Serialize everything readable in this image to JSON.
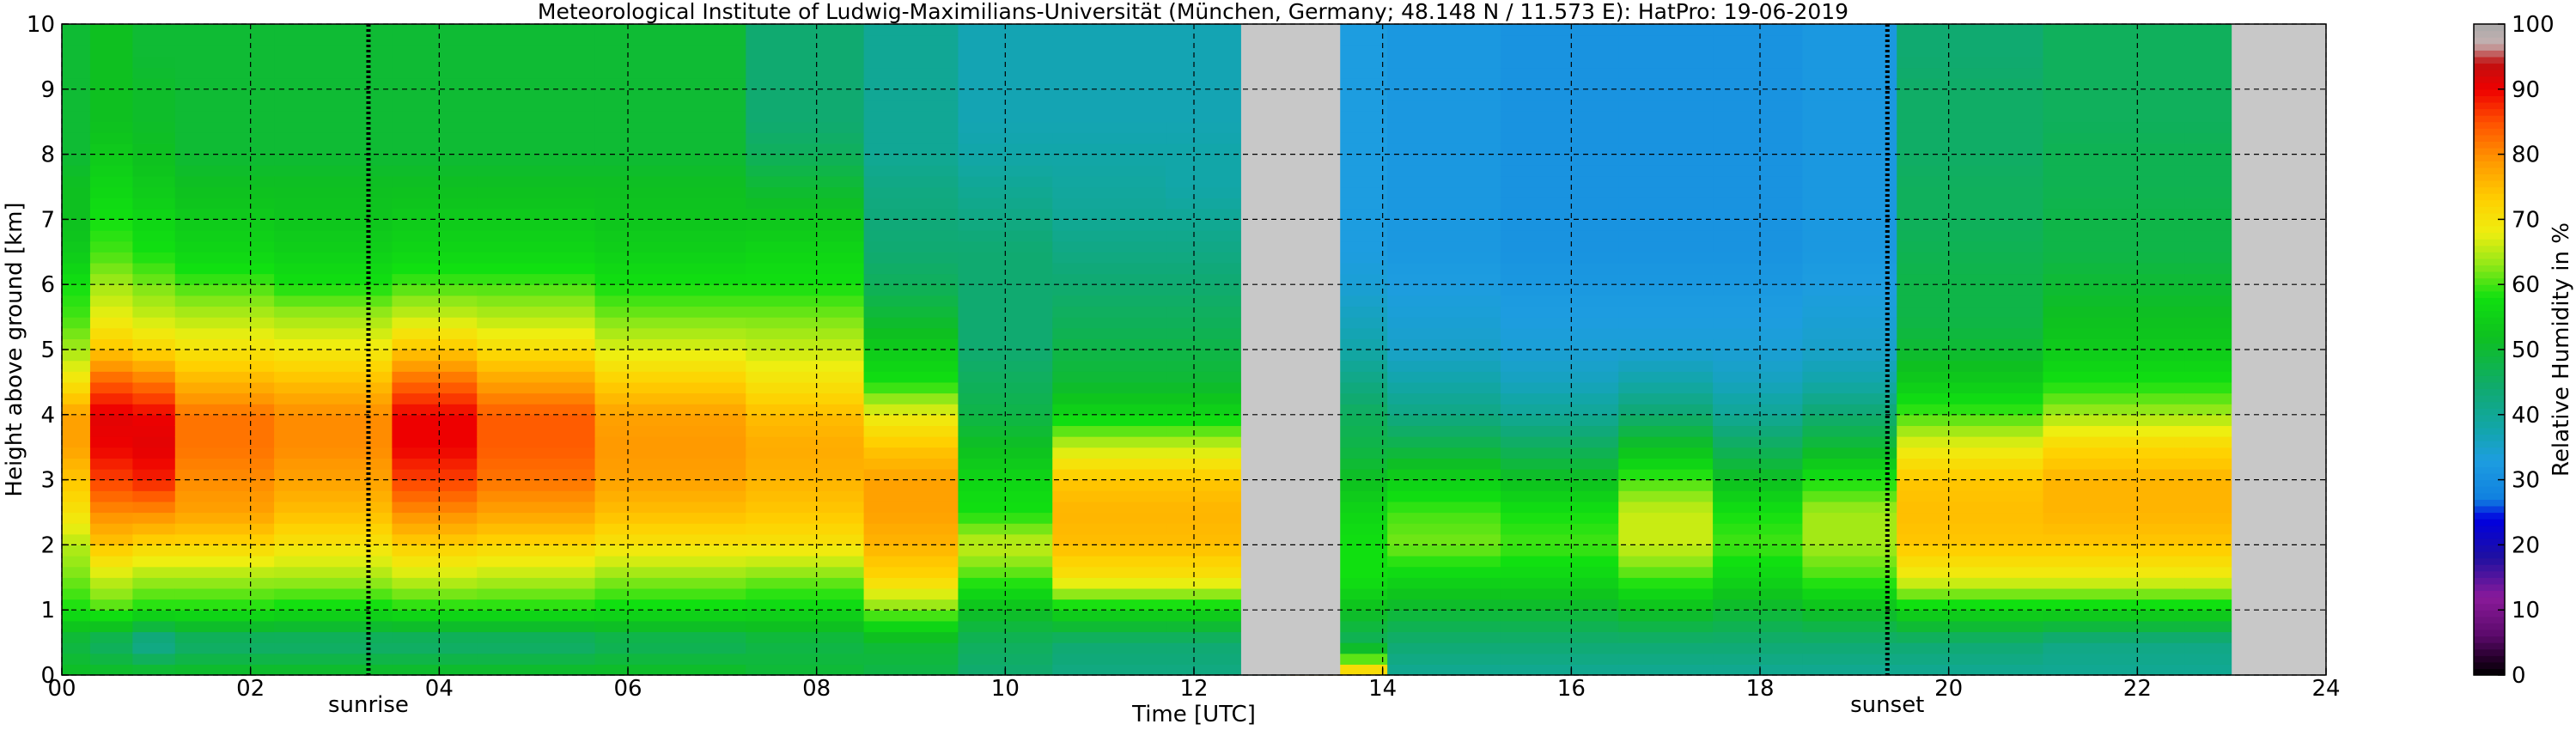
{
  "chart_data": {
    "type": "heatmap",
    "title": "Meteorological Institute of Ludwig-Maximilians-Universität (München, Germany; 48.148 N / 11.573 E):    HatPro: 19-06-2019",
    "xlabel": "Time [UTC]",
    "ylabel": "Height above ground [km]",
    "colorbar_label": "Relative Humidity in %",
    "xlim": [
      0,
      24
    ],
    "ylim": [
      0,
      10
    ],
    "clim": [
      0,
      100
    ],
    "x_ticks": [
      "00",
      "02",
      "04",
      "06",
      "08",
      "10",
      "12",
      "14",
      "16",
      "18",
      "20",
      "22",
      "24"
    ],
    "y_ticks": [
      "0",
      "1",
      "2",
      "3",
      "4",
      "5",
      "6",
      "7",
      "8",
      "9",
      "10"
    ],
    "colorbar_ticks": [
      "0",
      "10",
      "20",
      "30",
      "40",
      "50",
      "60",
      "70",
      "80",
      "90",
      "100"
    ],
    "grid": true,
    "missing_data_color": "#c8c8c8",
    "missing_data_intervals": [
      [
        12.5,
        13.55
      ],
      [
        23.0,
        24.0
      ]
    ],
    "markers": [
      {
        "label": "sunrise",
        "time": 3.25
      },
      {
        "label": "sunset",
        "time": 19.35
      }
    ],
    "colormap": [
      {
        "v": 0,
        "c": "#000000"
      },
      {
        "v": 3,
        "c": "#2a0030"
      },
      {
        "v": 6,
        "c": "#5a0a6a"
      },
      {
        "v": 12,
        "c": "#8a1a9a"
      },
      {
        "v": 18,
        "c": "#2010a0"
      },
      {
        "v": 24,
        "c": "#0000e0"
      },
      {
        "v": 27,
        "c": "#1080e0"
      },
      {
        "v": 33,
        "c": "#1d9de0"
      },
      {
        "v": 38,
        "c": "#12a6a8"
      },
      {
        "v": 44,
        "c": "#10aa70"
      },
      {
        "v": 52,
        "c": "#0ec020"
      },
      {
        "v": 58,
        "c": "#10e010"
      },
      {
        "v": 63,
        "c": "#90e818"
      },
      {
        "v": 68,
        "c": "#eeee10"
      },
      {
        "v": 73,
        "c": "#ffd000"
      },
      {
        "v": 79,
        "c": "#ff9800"
      },
      {
        "v": 85,
        "c": "#ff5000"
      },
      {
        "v": 90,
        "c": "#ee0000"
      },
      {
        "v": 94,
        "c": "#c01010"
      },
      {
        "v": 97,
        "c": "#c4b0b0"
      },
      {
        "v": 100,
        "c": "#aaaaaa"
      }
    ],
    "heights_km": [
      0,
      0.5,
      1,
      1.5,
      2,
      2.5,
      3,
      3.5,
      4,
      4.5,
      5,
      5.5,
      6,
      6.5,
      7,
      7.5,
      8,
      8.5,
      9,
      9.5,
      10
    ],
    "times_utc": [
      0,
      0.6,
      0.9,
      1.5,
      3,
      4,
      4.8,
      6.5,
      8,
      9,
      10,
      11,
      12.4,
      13.6,
      14.5,
      16,
      17,
      18,
      18.9,
      20,
      22,
      23
    ],
    "rh_profiles": [
      [
        52,
        48,
        58,
        62,
        65,
        70,
        74,
        78,
        78,
        70,
        64,
        60,
        58,
        54,
        52,
        52,
        50,
        50,
        50,
        50,
        50
      ],
      [
        52,
        45,
        60,
        66,
        74,
        80,
        86,
        90,
        91,
        84,
        74,
        68,
        64,
        60,
        58,
        56,
        54,
        52,
        52,
        52,
        52
      ],
      [
        52,
        40,
        58,
        64,
        72,
        80,
        88,
        91,
        90,
        82,
        72,
        66,
        62,
        58,
        56,
        54,
        52,
        51,
        51,
        50,
        50
      ],
      [
        52,
        44,
        58,
        64,
        72,
        78,
        80,
        82,
        82,
        76,
        70,
        65,
        60,
        56,
        54,
        52,
        50,
        50,
        50,
        50,
        50
      ],
      [
        52,
        44,
        57,
        64,
        70,
        75,
        78,
        80,
        80,
        75,
        69,
        64,
        58,
        55,
        53,
        52,
        50,
        50,
        50,
        50,
        50
      ],
      [
        52,
        44,
        58,
        66,
        73,
        80,
        86,
        90,
        90,
        83,
        74,
        66,
        60,
        56,
        54,
        52,
        50,
        50,
        50,
        50,
        50
      ],
      [
        52,
        44,
        58,
        65,
        72,
        78,
        82,
        84,
        84,
        78,
        71,
        65,
        60,
        56,
        54,
        52,
        50,
        50,
        50,
        50,
        50
      ],
      [
        52,
        46,
        57,
        63,
        70,
        75,
        78,
        79,
        78,
        73,
        67,
        62,
        58,
        55,
        53,
        52,
        50,
        50,
        50,
        50,
        50
      ],
      [
        50,
        48,
        56,
        62,
        70,
        74,
        76,
        77,
        75,
        70,
        66,
        62,
        58,
        56,
        53,
        50,
        46,
        44,
        44,
        44,
        44
      ],
      [
        48,
        50,
        62,
        72,
        76,
        78,
        78,
        74,
        68,
        58,
        54,
        50,
        46,
        44,
        43,
        42,
        40,
        40,
        40,
        40,
        40
      ],
      [
        44,
        46,
        52,
        60,
        66,
        58,
        56,
        52,
        48,
        46,
        44,
        44,
        44,
        44,
        42,
        40,
        38,
        37,
        37,
        37,
        37
      ],
      [
        42,
        44,
        56,
        70,
        75,
        76,
        74,
        66,
        56,
        50,
        48,
        46,
        44,
        42,
        40,
        39,
        38,
        37,
        37,
        37,
        37
      ],
      [
        42,
        44,
        56,
        70,
        75,
        76,
        74,
        66,
        56,
        50,
        48,
        46,
        44,
        42,
        40,
        38,
        38,
        37,
        37,
        37,
        37
      ],
      [
        76,
        46,
        52,
        58,
        58,
        56,
        52,
        48,
        46,
        42,
        38,
        36,
        34,
        33,
        33,
        33,
        33,
        33,
        33,
        33,
        33
      ],
      [
        40,
        44,
        50,
        56,
        62,
        60,
        55,
        48,
        42,
        38,
        35,
        34,
        33,
        32,
        32,
        32,
        32,
        32,
        32,
        32,
        32
      ],
      [
        40,
        44,
        50,
        56,
        60,
        58,
        52,
        46,
        40,
        36,
        34,
        33,
        32,
        31,
        31,
        31,
        31,
        31,
        31,
        31,
        31
      ],
      [
        40,
        44,
        52,
        60,
        66,
        66,
        60,
        52,
        44,
        38,
        34,
        33,
        32,
        31,
        31,
        31,
        31,
        31,
        31,
        31,
        31
      ],
      [
        40,
        44,
        50,
        56,
        60,
        58,
        52,
        46,
        40,
        36,
        34,
        33,
        32,
        31,
        31,
        31,
        31,
        31,
        31,
        31,
        31
      ],
      [
        40,
        44,
        52,
        60,
        64,
        64,
        58,
        50,
        44,
        38,
        35,
        34,
        33,
        32,
        32,
        32,
        32,
        32,
        32,
        32,
        32
      ],
      [
        40,
        44,
        56,
        68,
        74,
        75,
        74,
        68,
        60,
        54,
        50,
        48,
        48,
        47,
        46,
        46,
        45,
        45,
        45,
        44,
        44
      ],
      [
        40,
        42,
        56,
        68,
        74,
        76,
        76,
        72,
        64,
        58,
        54,
        52,
        50,
        48,
        48,
        47,
        47,
        46,
        46,
        46,
        46
      ],
      [
        40,
        42,
        56,
        68,
        74,
        76,
        76,
        72,
        64,
        58,
        54,
        52,
        50,
        48,
        48,
        47,
        47,
        46,
        46,
        46,
        46
      ]
    ]
  }
}
